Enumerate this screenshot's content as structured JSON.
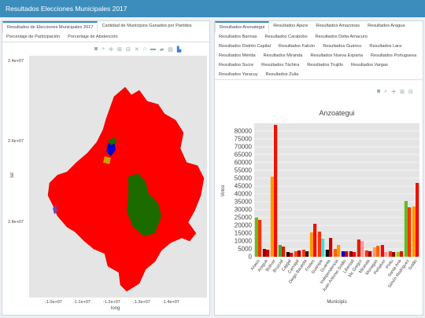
{
  "app": {
    "title": "Resultados Elecciones Municipales 2017"
  },
  "left_tabs": [
    {
      "label": "Resultados de Elecciones Municipales 2017",
      "active": true
    },
    {
      "label": "Cantidad de Municipios Ganados por Partidos",
      "active": false
    },
    {
      "label": "Porcentaje de Participación",
      "active": false
    },
    {
      "label": "Porcentaje de Abstención",
      "active": false
    }
  ],
  "right_tabs": [
    {
      "label": "Resultados Anzoategui",
      "active": true
    },
    {
      "label": "Resultados Apure",
      "active": false
    },
    {
      "label": "Resultados Amazonas",
      "active": false
    },
    {
      "label": "Resultados Aragua",
      "active": false
    },
    {
      "label": "Resultados Barinas",
      "active": false
    },
    {
      "label": "Resultados Carabobo",
      "active": false
    },
    {
      "label": "Resultados Delta Amacuro",
      "active": false
    },
    {
      "label": "Resultados Distrito Capital",
      "active": false
    },
    {
      "label": "Resultados Falcón",
      "active": false
    },
    {
      "label": "Resultados Guárico",
      "active": false
    },
    {
      "label": "Resultados Lara",
      "active": false
    },
    {
      "label": "Resultados Mérida",
      "active": false
    },
    {
      "label": "Resultados Miranda",
      "active": false
    },
    {
      "label": "Resultados Nueva Esparta",
      "active": false
    },
    {
      "label": "Resultados Portuguesa",
      "active": false
    },
    {
      "label": "Resultados Sucre",
      "active": false
    },
    {
      "label": "Resultados Táchira",
      "active": false
    },
    {
      "label": "Resultados Trujillo",
      "active": false
    },
    {
      "label": "Resultados Vargas",
      "active": false
    },
    {
      "label": "Resultados Yaracuy",
      "active": false
    },
    {
      "label": "Resultados Zulia",
      "active": false
    }
  ],
  "map": {
    "ylabel": "lat",
    "xlabel": "long",
    "yticks": [
      "2.4e+07",
      "2.6e+07",
      "2.8e+07"
    ],
    "xticks": [
      "-1.0e+07",
      "-1.1e+07",
      "-1.2e+07",
      "-1.3e+07",
      "-1.4e+07"
    ],
    "colors": {
      "main": "#ff0000",
      "green": "#1b6b00",
      "blue": "#0000cc",
      "yellow": "#c8a000"
    }
  },
  "chart_data": {
    "type": "bar",
    "title": "Anzoategui",
    "xlabel": "Municipio",
    "ylabel": "Votos",
    "ylim": [
      0,
      85000
    ],
    "yticks": [
      0,
      5000,
      10000,
      15000,
      20000,
      25000,
      30000,
      35000,
      40000,
      45000,
      50000,
      55000,
      60000,
      65000,
      70000,
      75000,
      80000
    ],
    "categories": [
      "Anaco",
      "Aragua",
      "Bolívar",
      "Bruzual",
      "Cajigal",
      "Carvajal",
      "Diego Bautista",
      "Freites",
      "Guanipa",
      "Guanta",
      "Independencia",
      "Juan Antonio Sotillo",
      "Libertad",
      "Mc Gregor",
      "Miranda",
      "Monagas",
      "Peñalver",
      "Píritu",
      "Santa Ana",
      "Simón Rodríguez",
      "Sotillo"
    ],
    "bars": [
      [
        {
          "v": 25000,
          "c": "#66bb22"
        },
        {
          "v": 23500,
          "c": "#ff3300"
        }
      ],
      [
        {
          "v": 5000,
          "c": "#990000"
        },
        {
          "v": 4500,
          "c": "#cc0000"
        }
      ],
      [
        {
          "v": 51000,
          "c": "#ff9900"
        },
        {
          "v": 84000,
          "c": "#ee1100"
        }
      ],
      [
        {
          "v": 7500,
          "c": "#44aa22"
        },
        {
          "v": 6500,
          "c": "#cc2200"
        }
      ],
      [
        {
          "v": 3000,
          "c": "#330000"
        },
        {
          "v": 2500,
          "c": "#dd0000"
        }
      ],
      [
        {
          "v": 3500,
          "c": "#ff4400"
        },
        {
          "v": 4000,
          "c": "#aa0000"
        }
      ],
      [
        {
          "v": 4500,
          "c": "#ff3300"
        },
        {
          "v": 3500,
          "c": "#222222"
        }
      ],
      [
        {
          "v": 15500,
          "c": "#ff9900"
        },
        {
          "v": 21000,
          "c": "#ee1100"
        }
      ],
      [
        {
          "v": 16000,
          "c": "#ff3300"
        },
        {
          "v": 11500,
          "c": "#44dddd"
        }
      ],
      [
        {
          "v": 4500,
          "c": "#111111"
        },
        {
          "v": 12000,
          "c": "#cc0000"
        }
      ],
      [
        {
          "v": 5000,
          "c": "#ff6600"
        },
        {
          "v": 7500,
          "c": "#ff9900"
        }
      ],
      [
        {
          "v": 3500,
          "c": "#0000cc"
        },
        {
          "v": 3500,
          "c": "#cc0000"
        }
      ],
      [
        {
          "v": 3500,
          "c": "#990000"
        },
        {
          "v": 3000,
          "c": "#ff0000"
        }
      ],
      [
        {
          "v": 11000,
          "c": "#dd2200"
        },
        {
          "v": 10000,
          "c": "#ff9999"
        }
      ],
      [
        {
          "v": 4000,
          "c": "#ff3300"
        },
        {
          "v": 3500,
          "c": "#990000"
        }
      ],
      [
        {
          "v": 6000,
          "c": "#ff9966"
        },
        {
          "v": 7000,
          "c": "#ff6600"
        }
      ],
      [
        {
          "v": 7500,
          "c": "#ff0000"
        },
        {
          "v": 3000,
          "c": "#ff9999"
        }
      ],
      [
        {
          "v": 3500,
          "c": "#ff3300"
        },
        {
          "v": 3000,
          "c": "#990000"
        }
      ],
      [
        {
          "v": 3000,
          "c": "#99cc00"
        },
        {
          "v": 3500,
          "c": "#cc2200"
        }
      ],
      [
        {
          "v": 35500,
          "c": "#66bb22"
        },
        {
          "v": 31500,
          "c": "#ff3300"
        }
      ],
      [
        {
          "v": 32000,
          "c": "#ff9900"
        },
        {
          "v": 47000,
          "c": "#ee1100"
        }
      ]
    ]
  },
  "toolbar_icons": [
    "camera-icon",
    "zoom-icon",
    "pan-icon",
    "zoom-in-icon",
    "zoom-out-icon",
    "autoscale-icon",
    "reset-icon",
    "plotly-logo-icon"
  ]
}
